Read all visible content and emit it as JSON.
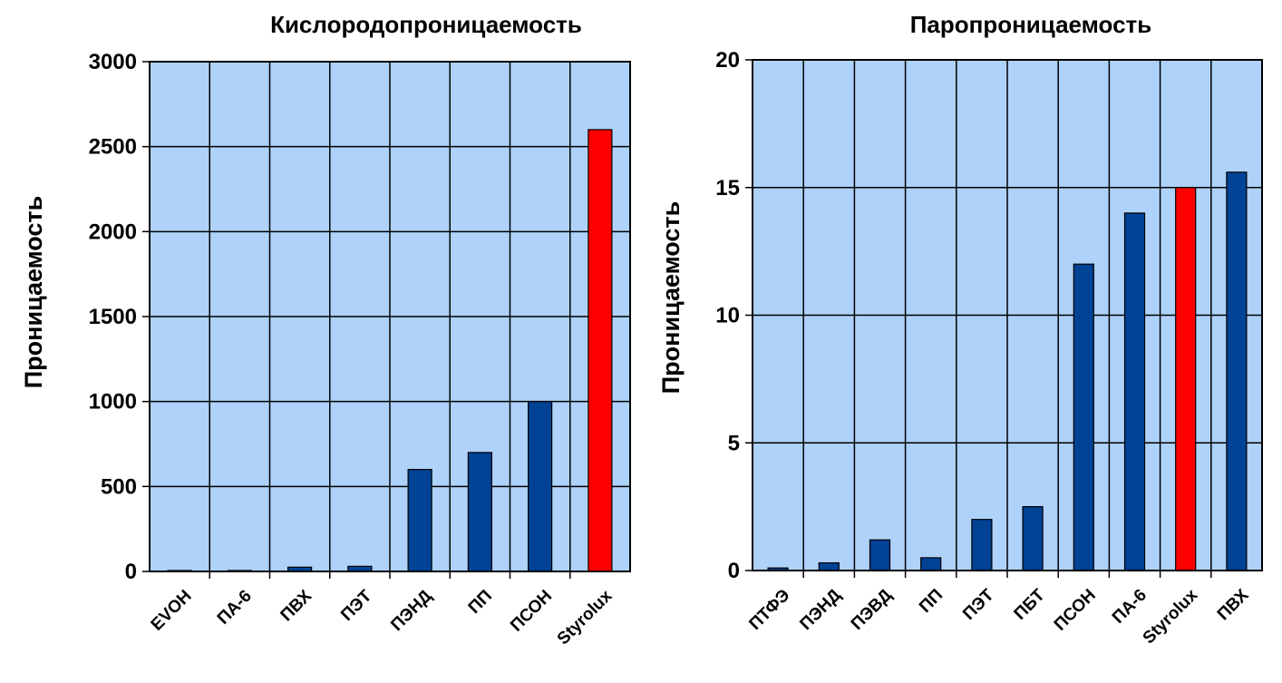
{
  "colors": {
    "plot_bg": "#aed2fa",
    "bar": "#004294",
    "highlight": "#ff0000",
    "grid": "#000000"
  },
  "chart_data": [
    {
      "type": "bar",
      "title": "Кислородопроницаемость",
      "ylabel": "Проницаемость",
      "xlabel": "",
      "ylim": [
        0,
        3000
      ],
      "yticks": [
        0,
        500,
        1000,
        1500,
        2000,
        2500,
        3000
      ],
      "grid": true,
      "categories": [
        "EVOH",
        "ПА-6",
        "ПВХ",
        "ПЭТ",
        "ПЭНД",
        "ПП",
        "ПСОН",
        "Styrolux"
      ],
      "values": [
        1,
        5,
        25,
        30,
        600,
        700,
        1000,
        2600
      ],
      "highlight": "Styrolux"
    },
    {
      "type": "bar",
      "title": "Паропроницаемость",
      "ylabel": "Проницаемость",
      "xlabel": "",
      "ylim": [
        0,
        20
      ],
      "yticks": [
        0,
        5,
        10,
        15,
        20
      ],
      "grid": true,
      "categories": [
        "ПТФЭ",
        "ПЭНД",
        "ПЭВД",
        "ПП",
        "ПЭТ",
        "ПБТ",
        "ПСОН",
        "ПА-6",
        "Styrolux",
        "ПВХ"
      ],
      "values": [
        0.1,
        0.3,
        1.2,
        0.5,
        2.0,
        2.5,
        12,
        14,
        15,
        15.6
      ],
      "highlight": "Styrolux"
    }
  ]
}
